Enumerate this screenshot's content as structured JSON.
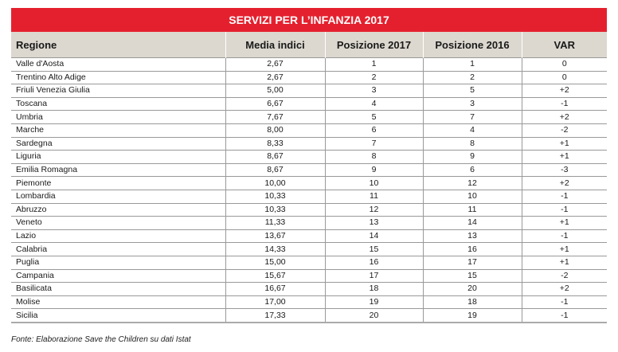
{
  "title": "SERVIZI PER L’INFANZIA 2017",
  "headers": [
    "Regione",
    "Media indici",
    "Posizione 2017",
    "Posizione 2016",
    "VAR"
  ],
  "rows": [
    [
      "Valle d'Aosta",
      "2,67",
      "1",
      "1",
      "0"
    ],
    [
      "Trentino Alto Adige",
      "2,67",
      "2",
      "2",
      "0"
    ],
    [
      "Friuli Venezia Giulia",
      "5,00",
      "3",
      "5",
      "+2"
    ],
    [
      "Toscana",
      "6,67",
      "4",
      "3",
      "-1"
    ],
    [
      "Umbria",
      "7,67",
      "5",
      "7",
      "+2"
    ],
    [
      "Marche",
      "8,00",
      "6",
      "4",
      "-2"
    ],
    [
      "Sardegna",
      "8,33",
      "7",
      "8",
      "+1"
    ],
    [
      "Liguria",
      "8,67",
      "8",
      "9",
      "+1"
    ],
    [
      "Emilia Romagna",
      "8,67",
      "9",
      "6",
      "-3"
    ],
    [
      "Piemonte",
      "10,00",
      "10",
      "12",
      "+2"
    ],
    [
      "Lombardia",
      "10,33",
      "11",
      "10",
      "-1"
    ],
    [
      "Abruzzo",
      "10,33",
      "12",
      "11",
      "-1"
    ],
    [
      "Veneto",
      "11,33",
      "13",
      "14",
      "+1"
    ],
    [
      "Lazio",
      "13,67",
      "14",
      "13",
      "-1"
    ],
    [
      "Calabria",
      "14,33",
      "15",
      "16",
      "+1"
    ],
    [
      "Puglia",
      "15,00",
      "16",
      "17",
      "+1"
    ],
    [
      "Campania",
      "15,67",
      "17",
      "15",
      "-2"
    ],
    [
      "Basilicata",
      "16,67",
      "18",
      "20",
      "+2"
    ],
    [
      "Molise",
      "17,00",
      "19",
      "18",
      "-1"
    ],
    [
      "Sicilia",
      "17,33",
      "20",
      "19",
      "-1"
    ]
  ],
  "source": "Fonte: Elaborazione Save the Children su dati Istat",
  "colors": {
    "title_bg": "#e5202e",
    "header_bg": "#dcd8cf"
  }
}
